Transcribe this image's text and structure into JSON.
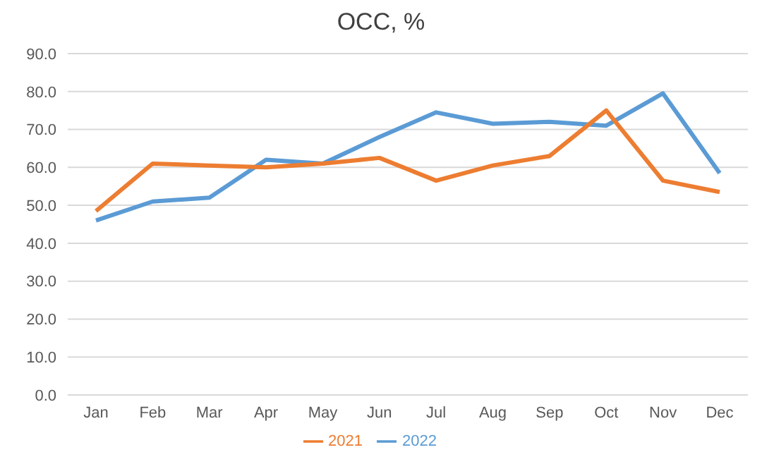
{
  "chart_data": {
    "type": "line",
    "title": "OCC, %",
    "categories": [
      "Jan",
      "Feb",
      "Mar",
      "Apr",
      "May",
      "Jun",
      "Jul",
      "Aug",
      "Sep",
      "Oct",
      "Nov",
      "Dec"
    ],
    "series": [
      {
        "name": "2022",
        "color": "#5b9bd5",
        "values": [
          46,
          51,
          52,
          62,
          61,
          68,
          74.5,
          71.5,
          72,
          71,
          79.5,
          58.5
        ]
      },
      {
        "name": "2021",
        "color": "#ed7d31",
        "values": [
          48.5,
          61,
          60.5,
          60,
          61,
          62.5,
          56.5,
          60.5,
          63,
          75,
          56.5,
          53.5
        ]
      }
    ],
    "ylim": [
      0,
      90
    ],
    "yticks": [
      {
        "value": 0,
        "label": "0.0"
      },
      {
        "value": 10,
        "label": "10.0"
      },
      {
        "value": 20,
        "label": "20.0"
      },
      {
        "value": 30,
        "label": "30.0"
      },
      {
        "value": 40,
        "label": "40.0"
      },
      {
        "value": 50,
        "label": "50.0"
      },
      {
        "value": 60,
        "label": "60.0"
      },
      {
        "value": 70,
        "label": "70.0"
      },
      {
        "value": 80,
        "label": "80.0"
      },
      {
        "value": 90,
        "label": "90.0"
      }
    ],
    "grid": "y",
    "legend": "bottom",
    "marker": "none",
    "line_style": "solid"
  }
}
